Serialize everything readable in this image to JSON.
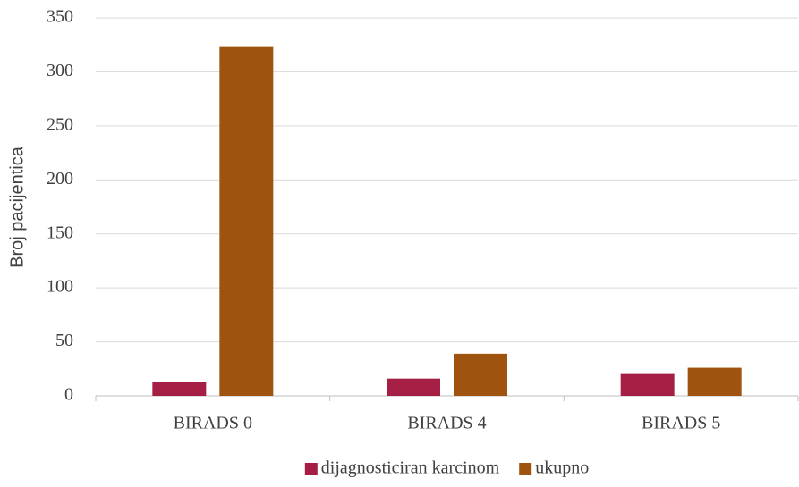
{
  "chart_data": {
    "type": "bar",
    "y_axis_label": "Broj pacijentica",
    "categories": [
      "BIRADS 0",
      "BIRADS 4",
      "BIRADS 5"
    ],
    "series": [
      {
        "name": "dijagnosticiran karcinom",
        "color": "#a51f45",
        "values": [
          13,
          16,
          21
        ]
      },
      {
        "name": "ukupno",
        "color": "#9e530e",
        "values": [
          323,
          39,
          26
        ]
      }
    ],
    "ylim": [
      0,
      350
    ],
    "yticks": [
      0,
      50,
      100,
      150,
      200,
      250,
      300,
      350
    ],
    "grid": true,
    "legend": "bottom"
  }
}
